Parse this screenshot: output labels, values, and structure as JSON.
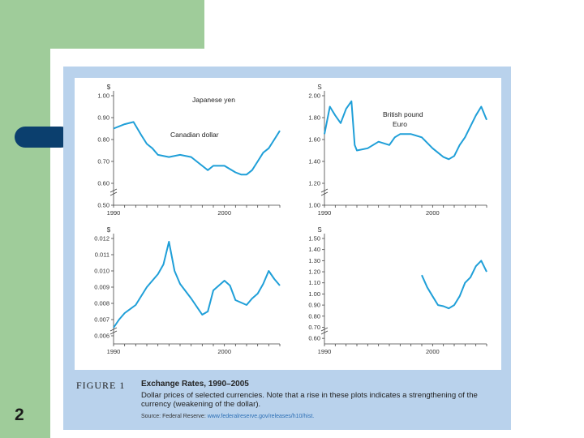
{
  "slide": {
    "number": "2"
  },
  "figure": {
    "label": "FIGURE 1",
    "title": "Exchange Rates, 1990–2005",
    "description": "Dollar prices of selected currencies. Note that a rise in these plots indicates a strengthening of the currency (weakening of the dollar).",
    "source_prefix": "Source: Federal Reserve: ",
    "source_link": "www.federalreserve.gov/releases/h10/hist."
  },
  "colors": {
    "series": "#1f9fd8",
    "panel": "#b9d2ec",
    "accent_green": "#9fcc9a",
    "accent_navy": "#0b3f6e"
  },
  "chart_data": [
    {
      "type": "line",
      "title": "Canadian dollar",
      "unit": "$",
      "xlim": [
        1990,
        2005
      ],
      "ylim": [
        0.5,
        1.0
      ],
      "yticks": [
        "1.00",
        "0.90",
        "0.80",
        "0.70",
        "0.60",
        "0.50"
      ],
      "xticks": [
        "1990",
        "2000"
      ],
      "series": [
        {
          "x": [
            1990,
            1991,
            1991.8,
            1992.5,
            1993,
            1993.5,
            1994,
            1995,
            1996,
            1997,
            1998,
            1998.5,
            1999,
            2000,
            2001,
            2001.5,
            2002,
            2002.5,
            2003,
            2003.5,
            2004,
            2004.5,
            2005
          ],
          "y": [
            0.85,
            0.87,
            0.88,
            0.82,
            0.78,
            0.76,
            0.73,
            0.72,
            0.73,
            0.72,
            0.68,
            0.66,
            0.68,
            0.68,
            0.65,
            0.64,
            0.64,
            0.66,
            0.7,
            0.74,
            0.76,
            0.8,
            0.84
          ]
        }
      ]
    },
    {
      "type": "line",
      "title": "British pound",
      "unit": "S",
      "xlim": [
        1990,
        2005
      ],
      "ylim": [
        1.0,
        2.0
      ],
      "yticks": [
        "2.00",
        "1.80",
        "1.60",
        "1.40",
        "1.20",
        "1.00"
      ],
      "xticks": [
        "1990",
        "2000"
      ],
      "series": [
        {
          "x": [
            1990,
            1990.5,
            1991,
            1991.5,
            1992,
            1992.5,
            1992.8,
            1993,
            1994,
            1995,
            1996,
            1996.5,
            1997,
            1998,
            1999,
            2000,
            2000.5,
            2001,
            2001.5,
            2002,
            2002.5,
            2003,
            2004,
            2004.5,
            2005
          ],
          "y": [
            1.65,
            1.9,
            1.82,
            1.75,
            1.88,
            1.95,
            1.55,
            1.5,
            1.52,
            1.58,
            1.55,
            1.62,
            1.65,
            1.65,
            1.62,
            1.52,
            1.48,
            1.44,
            1.42,
            1.45,
            1.55,
            1.62,
            1.82,
            1.9,
            1.78
          ]
        }
      ]
    },
    {
      "type": "line",
      "title": "Japanese yen",
      "unit": "$",
      "xlim": [
        1990,
        2005
      ],
      "ylim": [
        0.0055,
        0.012
      ],
      "yticks": [
        "0.012",
        "0.011",
        "0.010",
        "0.009",
        "0.008",
        "0.007",
        "0.006"
      ],
      "xticks": [
        "1990",
        "2000"
      ],
      "series": [
        {
          "x": [
            1990,
            1990.5,
            1991,
            1992,
            1993,
            1994,
            1994.5,
            1995,
            1995.5,
            1996,
            1997,
            1998,
            1998.5,
            1999,
            2000,
            2000.5,
            2001,
            2002,
            2002.5,
            2003,
            2003.5,
            2004,
            2004.5,
            2005
          ],
          "y": [
            0.0065,
            0.007,
            0.0074,
            0.0079,
            0.009,
            0.0098,
            0.0104,
            0.0118,
            0.01,
            0.0092,
            0.0083,
            0.0073,
            0.0075,
            0.0088,
            0.0094,
            0.0091,
            0.0082,
            0.0079,
            0.0083,
            0.0086,
            0.0092,
            0.01,
            0.0095,
            0.0091
          ]
        }
      ]
    },
    {
      "type": "line",
      "title": "Euro",
      "unit": "S",
      "xlim": [
        1990,
        2005
      ],
      "ylim": [
        0.55,
        1.5
      ],
      "yticks": [
        "1.50",
        "1.40",
        "1.30",
        "1.20",
        "1.10",
        "1.00",
        "0.90",
        "0.80",
        "0.70",
        "0.60"
      ],
      "xticks": [
        "1990",
        "2000"
      ],
      "series": [
        {
          "x": [
            1999,
            1999.5,
            2000,
            2000.5,
            2001,
            2001.5,
            2002,
            2002.5,
            2003,
            2003.5,
            2004,
            2004.5,
            2005
          ],
          "y": [
            1.17,
            1.06,
            0.98,
            0.9,
            0.89,
            0.87,
            0.9,
            0.98,
            1.1,
            1.15,
            1.25,
            1.3,
            1.2
          ]
        }
      ]
    }
  ]
}
